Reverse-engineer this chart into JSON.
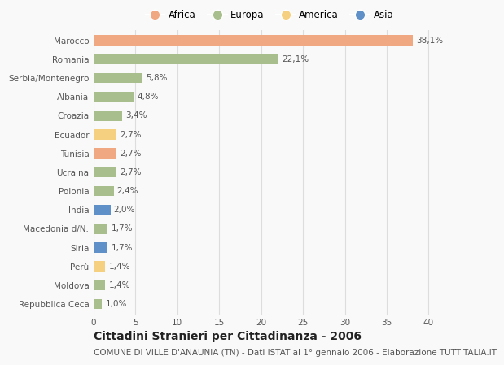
{
  "countries": [
    "Marocco",
    "Romania",
    "Serbia/Montenegro",
    "Albania",
    "Croazia",
    "Ecuador",
    "Tunisia",
    "Ucraina",
    "Polonia",
    "India",
    "Macedonia d/N.",
    "Siria",
    "Perù",
    "Moldova",
    "Repubblica Ceca"
  ],
  "values": [
    38.1,
    22.1,
    5.8,
    4.8,
    3.4,
    2.7,
    2.7,
    2.7,
    2.4,
    2.0,
    1.7,
    1.7,
    1.4,
    1.4,
    1.0
  ],
  "labels": [
    "38,1%",
    "22,1%",
    "5,8%",
    "4,8%",
    "3,4%",
    "2,7%",
    "2,7%",
    "2,7%",
    "2,4%",
    "2,0%",
    "1,7%",
    "1,7%",
    "1,4%",
    "1,4%",
    "1,0%"
  ],
  "continents": [
    "Africa",
    "Europa",
    "Europa",
    "Europa",
    "Europa",
    "America",
    "Africa",
    "Europa",
    "Europa",
    "Asia",
    "Europa",
    "Asia",
    "America",
    "Europa",
    "Europa"
  ],
  "colors": {
    "Africa": "#F0A882",
    "Europa": "#A8BE8C",
    "America": "#F5D080",
    "Asia": "#6090C8"
  },
  "legend_order": [
    "Africa",
    "Europa",
    "America",
    "Asia"
  ],
  "xlim": [
    0,
    42
  ],
  "xticks": [
    0,
    5,
    10,
    15,
    20,
    25,
    30,
    35,
    40
  ],
  "title": "Cittadini Stranieri per Cittadinanza - 2006",
  "subtitle": "COMUNE DI VILLE D'ANAUNIA (TN) - Dati ISTAT al 1° gennaio 2006 - Elaborazione TUTTITALIA.IT",
  "bg_color": "#f9f9f9",
  "bar_height": 0.55,
  "title_fontsize": 10,
  "subtitle_fontsize": 7.5,
  "label_fontsize": 7.5,
  "tick_fontsize": 7.5,
  "legend_fontsize": 8.5
}
